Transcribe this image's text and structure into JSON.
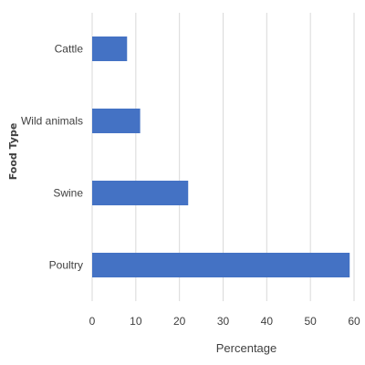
{
  "chart_data": {
    "type": "bar",
    "orientation": "horizontal",
    "categories": [
      "Cattle",
      "Wild animals",
      "Swine",
      "Poultry"
    ],
    "values": [
      8,
      11,
      22,
      59
    ],
    "xlabel": "Percentage",
    "ylabel": "Food Type",
    "xlim": [
      0,
      60
    ],
    "xticks": [
      0,
      10,
      20,
      30,
      40,
      50,
      60
    ],
    "grid": "vertical",
    "bar_color": "#4472C4"
  }
}
